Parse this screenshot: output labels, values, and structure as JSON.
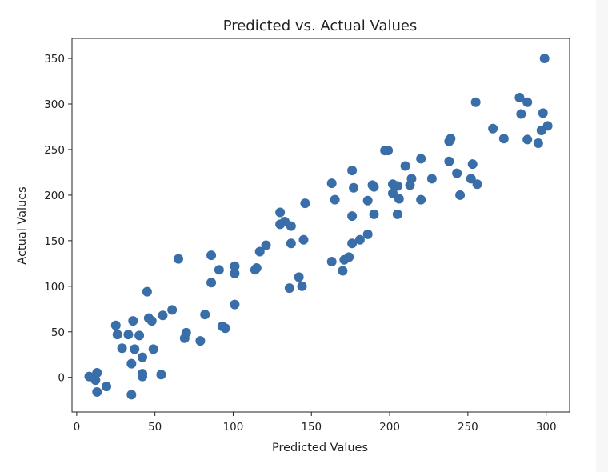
{
  "chart_data": {
    "type": "scatter",
    "title": "Predicted vs. Actual Values",
    "xlabel": "Predicted Values",
    "ylabel": "Actual Values",
    "xlim": [
      -3,
      315
    ],
    "ylim": [
      -38,
      372
    ],
    "xticks": [
      0,
      50,
      100,
      150,
      200,
      250,
      300
    ],
    "yticks": [
      0,
      50,
      100,
      150,
      200,
      250,
      300,
      350
    ],
    "grid": false,
    "marker_color": "#3a6ea8",
    "points": [
      [
        8,
        1
      ],
      [
        12,
        -3
      ],
      [
        13,
        5
      ],
      [
        13,
        -16
      ],
      [
        19,
        -10
      ],
      [
        25,
        57
      ],
      [
        26,
        47
      ],
      [
        29,
        32
      ],
      [
        33,
        47
      ],
      [
        35,
        -19
      ],
      [
        35,
        15
      ],
      [
        36,
        62
      ],
      [
        37,
        31
      ],
      [
        40,
        46
      ],
      [
        42,
        22
      ],
      [
        42,
        4
      ],
      [
        42,
        1
      ],
      [
        45,
        94
      ],
      [
        46,
        65
      ],
      [
        48,
        62
      ],
      [
        49,
        31
      ],
      [
        54,
        3
      ],
      [
        55,
        68
      ],
      [
        61,
        74
      ],
      [
        65,
        130
      ],
      [
        69,
        43
      ],
      [
        70,
        49
      ],
      [
        79,
        40
      ],
      [
        82,
        69
      ],
      [
        86,
        134
      ],
      [
        86,
        104
      ],
      [
        91,
        118
      ],
      [
        93,
        56
      ],
      [
        95,
        54
      ],
      [
        101,
        114
      ],
      [
        101,
        122
      ],
      [
        101,
        80
      ],
      [
        114,
        118
      ],
      [
        115,
        120
      ],
      [
        117,
        138
      ],
      [
        121,
        145
      ],
      [
        130,
        168
      ],
      [
        130,
        181
      ],
      [
        133,
        171
      ],
      [
        136,
        98
      ],
      [
        137,
        166
      ],
      [
        137,
        147
      ],
      [
        142,
        110
      ],
      [
        144,
        100
      ],
      [
        145,
        151
      ],
      [
        146,
        191
      ],
      [
        163,
        213
      ],
      [
        163,
        127
      ],
      [
        165,
        195
      ],
      [
        170,
        117
      ],
      [
        171,
        129
      ],
      [
        174,
        132
      ],
      [
        176,
        227
      ],
      [
        176,
        177
      ],
      [
        176,
        147
      ],
      [
        177,
        208
      ],
      [
        181,
        151
      ],
      [
        186,
        157
      ],
      [
        186,
        194
      ],
      [
        189,
        211
      ],
      [
        190,
        209
      ],
      [
        190,
        179
      ],
      [
        197,
        249
      ],
      [
        199,
        249
      ],
      [
        202,
        212
      ],
      [
        202,
        202
      ],
      [
        205,
        210
      ],
      [
        205,
        179
      ],
      [
        206,
        196
      ],
      [
        210,
        232
      ],
      [
        213,
        211
      ],
      [
        214,
        218
      ],
      [
        220,
        195
      ],
      [
        220,
        240
      ],
      [
        227,
        218
      ],
      [
        238,
        237
      ],
      [
        238,
        259
      ],
      [
        239,
        262
      ],
      [
        243,
        224
      ],
      [
        245,
        200
      ],
      [
        252,
        218
      ],
      [
        253,
        234
      ],
      [
        255,
        302
      ],
      [
        256,
        212
      ],
      [
        266,
        273
      ],
      [
        273,
        262
      ],
      [
        283,
        307
      ],
      [
        284,
        289
      ],
      [
        288,
        302
      ],
      [
        288,
        261
      ],
      [
        295,
        257
      ],
      [
        297,
        271
      ],
      [
        298,
        290
      ],
      [
        299,
        350
      ],
      [
        301,
        276
      ]
    ]
  }
}
